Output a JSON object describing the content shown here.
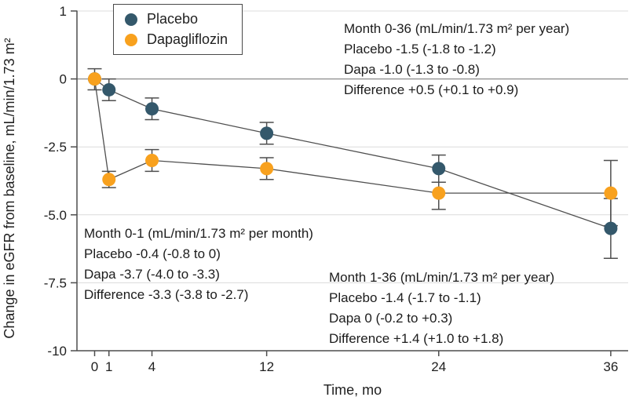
{
  "figure": {
    "y_axis_label": "Change in eGFR from baseline, mL/min/1.73 m²",
    "x_axis_label": "Time, mo"
  },
  "legend": {
    "items": [
      {
        "label": "Placebo",
        "color": "#34586B"
      },
      {
        "label": "Dapagliflozin",
        "color": "#F8A11E"
      }
    ]
  },
  "annotations": {
    "top_right": {
      "lines": [
        "Month 0-36 (mL/min/1.73 m² per year)",
        "Placebo -1.5 (-1.8 to -1.2)",
        "Dapa -1.0 (-1.3 to -0.8)",
        "Difference +0.5 (+0.1 to +0.9)"
      ]
    },
    "bottom_left": {
      "lines": [
        "Month 0-1 (mL/min/1.73 m² per month)",
        "Placebo -0.4 (-0.8 to 0)",
        "Dapa -3.7 (-4.0 to -3.3)",
        "Difference -3.3 (-3.8 to -2.7)"
      ]
    },
    "bottom_mid": {
      "lines": [
        "Month 1-36 (mL/min/1.73 m² per year)",
        "Placebo -1.4 (-1.7 to -1.1)",
        "Dapa 0 (-0.2 to +0.3)",
        "Difference +1.4 (+1.0 to +1.8)"
      ]
    }
  },
  "chart_data": {
    "type": "line",
    "x": [
      0,
      1,
      4,
      12,
      24,
      36
    ],
    "x_tick_labels": [
      "0",
      "1",
      "4",
      "12",
      "24",
      "36"
    ],
    "y_ticks": [
      1,
      0,
      -2.5,
      -5,
      -7.5,
      -10
    ],
    "y_tick_labels": [
      "1",
      "0",
      "-2.5",
      "-5.0",
      "-7.5",
      "-10"
    ],
    "xlabel": "Time, mo",
    "ylabel": "Change in eGFR from baseline, mL/min/1.73 m²",
    "ylim": [
      -10,
      1
    ],
    "grid": true,
    "legend_position": "top-left",
    "series": [
      {
        "name": "Placebo",
        "color": "#34586B",
        "values": [
          0,
          -0.4,
          -1.1,
          -2.0,
          -3.3,
          -5.5
        ],
        "ci_low": [
          0,
          -0.8,
          -1.5,
          -2.4,
          -3.8,
          -6.6
        ],
        "ci_high": [
          0,
          0.0,
          -0.7,
          -1.6,
          -2.8,
          -4.4
        ]
      },
      {
        "name": "Dapagliflozin",
        "color": "#F8A11E",
        "values": [
          0,
          -3.7,
          -3.0,
          -3.3,
          -4.2,
          -4.2
        ],
        "ci_low": [
          -0.4,
          -4.0,
          -3.4,
          -3.7,
          -4.8,
          -5.4
        ],
        "ci_high": [
          0.15,
          -3.4,
          -2.6,
          -2.9,
          -3.8,
          -3.0
        ]
      }
    ],
    "colors": {
      "axis": "#4d4d4d",
      "gridline": "#dcdcdc",
      "zero_line": "#8c8c8c",
      "error_bar": "#4f4f4f",
      "tick_text": "#1f1f1f"
    }
  }
}
